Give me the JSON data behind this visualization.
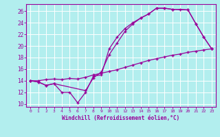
{
  "background_color": "#b2eeee",
  "grid_color": "#aadddd",
  "line_color": "#990099",
  "marker": "+",
  "xlabel": "Windchill (Refroidissement éolien,°C)",
  "xlim": [
    -0.5,
    23.5
  ],
  "ylim": [
    9.5,
    27.2
  ],
  "yticks": [
    10,
    12,
    14,
    16,
    18,
    20,
    22,
    24,
    26
  ],
  "xticks": [
    0,
    1,
    2,
    3,
    4,
    5,
    6,
    7,
    8,
    9,
    10,
    11,
    12,
    13,
    14,
    15,
    16,
    17,
    18,
    19,
    20,
    21,
    22,
    23
  ],
  "line1_x": [
    0,
    1,
    2,
    3,
    4,
    5,
    6,
    7,
    8,
    9,
    10,
    11,
    12,
    13,
    14,
    15,
    16,
    17,
    18,
    19,
    20,
    21,
    22,
    23
  ],
  "line1_y": [
    14.0,
    13.8,
    13.2,
    13.5,
    12.0,
    12.0,
    10.2,
    12.0,
    14.8,
    15.0,
    19.5,
    21.5,
    23.0,
    24.0,
    24.8,
    25.5,
    26.5,
    26.5,
    26.3,
    26.3,
    26.2,
    23.8,
    21.5,
    19.5
  ],
  "line2_x": [
    0,
    1,
    2,
    3,
    7,
    8,
    9,
    10,
    11,
    12,
    13,
    14,
    15,
    16,
    17,
    18,
    20,
    21,
    22,
    23
  ],
  "line2_y": [
    14.0,
    13.8,
    13.2,
    13.5,
    12.3,
    14.5,
    15.5,
    18.5,
    20.5,
    22.5,
    23.8,
    24.8,
    25.5,
    26.5,
    26.5,
    26.3,
    26.2,
    23.8,
    21.5,
    19.5
  ],
  "line3_x": [
    0,
    1,
    2,
    3,
    4,
    5,
    6,
    7,
    8,
    9,
    10,
    11,
    12,
    13,
    14,
    15,
    16,
    17,
    18,
    19,
    20,
    21,
    22,
    23
  ],
  "line3_y": [
    14.0,
    14.0,
    14.2,
    14.3,
    14.2,
    14.4,
    14.3,
    14.6,
    15.0,
    15.3,
    15.6,
    15.9,
    16.3,
    16.7,
    17.1,
    17.5,
    17.8,
    18.1,
    18.4,
    18.6,
    18.9,
    19.1,
    19.3,
    19.5
  ]
}
